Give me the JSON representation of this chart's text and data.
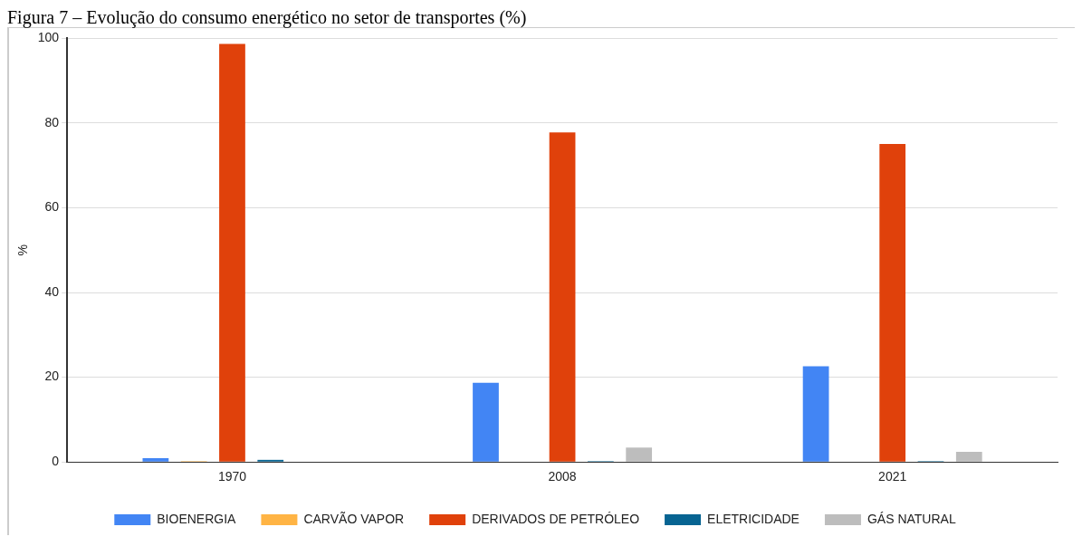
{
  "chart_data": {
    "type": "bar",
    "title": "Figura 7 – Evolução do consumo energético no setor de transportes (%)",
    "ylabel": "%",
    "categories": [
      "1970",
      "2008",
      "2021"
    ],
    "series": [
      {
        "name": "BIOENERGIA",
        "color": "#4285f4",
        "values": [
          0.9,
          18.7,
          22.6
        ]
      },
      {
        "name": "CARVÃO VAPOR",
        "color": "#ffb444",
        "values": [
          0.2,
          0,
          0
        ]
      },
      {
        "name": "DERIVADOS DE PETRÓLEO",
        "color": "#e0410b",
        "values": [
          98.7,
          77.8,
          75.1
        ]
      },
      {
        "name": "ELETRICIDADE",
        "color": "#076492",
        "values": [
          0.5,
          0.2,
          0.2
        ]
      },
      {
        "name": "GÁS NATURAL",
        "color": "#bdbdbd",
        "values": [
          0,
          3.4,
          2.4
        ]
      }
    ],
    "ylim": [
      0,
      100
    ],
    "yticks": [
      0,
      20,
      40,
      60,
      80,
      100
    ],
    "grid": "y",
    "legend": "bottom"
  }
}
